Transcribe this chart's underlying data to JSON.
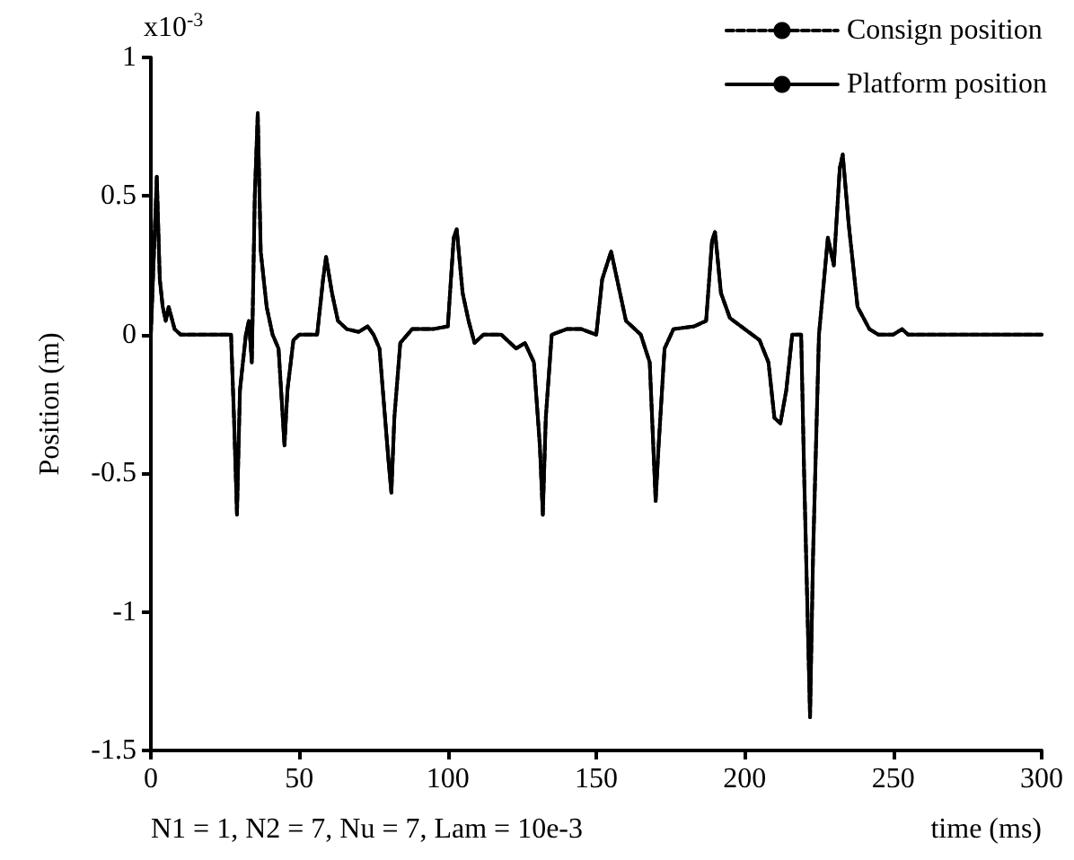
{
  "chart_data": {
    "type": "line",
    "xlabel": "time (ms)",
    "ylabel": "Position (m)",
    "annotations": [
      "x10$^{-3}$",
      "N1 = 1, N2 = 7, Nu = 7, Lam = 10e-3"
    ],
    "x": [
      0,
      2,
      3,
      4,
      5,
      6,
      8,
      10,
      27,
      28,
      29,
      30,
      32,
      33,
      34,
      35,
      36,
      37,
      39,
      41,
      43,
      45,
      46,
      48,
      50,
      56,
      58,
      59,
      61,
      63,
      66,
      70,
      73,
      75,
      77,
      80,
      81,
      82,
      84,
      88,
      95,
      100,
      102,
      103,
      105,
      107,
      109,
      112,
      118,
      121,
      123,
      126,
      129,
      131,
      132,
      133,
      135,
      140,
      145,
      150,
      152,
      155,
      157,
      160,
      165,
      168,
      170,
      171,
      173,
      176,
      183,
      187,
      189,
      190,
      192,
      195,
      200,
      205,
      208,
      210,
      212,
      214,
      216,
      219,
      220,
      222,
      223,
      225,
      228,
      230,
      232,
      233,
      235,
      238,
      242,
      245,
      250,
      253,
      255,
      300
    ],
    "series": [
      {
        "name": "Consign position",
        "color": "#000000",
        "line_style": "dashed",
        "values": [
          0,
          0.57,
          0.2,
          0.1,
          0.05,
          0.1,
          0.02,
          0,
          0,
          -0.3,
          -0.65,
          -0.2,
          0,
          0.05,
          -0.1,
          0.5,
          0.8,
          0.3,
          0.1,
          0,
          -0.05,
          -0.4,
          -0.2,
          -0.02,
          0,
          0,
          0.2,
          0.28,
          0.15,
          0.05,
          0.02,
          0.01,
          0.03,
          0,
          -0.05,
          -0.45,
          -0.57,
          -0.3,
          -0.03,
          0.02,
          0.02,
          0.03,
          0.35,
          0.38,
          0.15,
          0.05,
          -0.03,
          0,
          0,
          -0.03,
          -0.05,
          -0.03,
          -0.1,
          -0.4,
          -0.65,
          -0.3,
          0,
          0.02,
          0.02,
          0,
          0.2,
          0.3,
          0.2,
          0.05,
          0,
          -0.1,
          -0.6,
          -0.4,
          -0.05,
          0.02,
          0.03,
          0.05,
          0.34,
          0.37,
          0.15,
          0.06,
          0.02,
          -0.02,
          -0.1,
          -0.3,
          -0.32,
          -0.2,
          0,
          0,
          -0.5,
          -1.38,
          -0.8,
          0,
          0.35,
          0.25,
          0.6,
          0.65,
          0.4,
          0.1,
          0.02,
          0,
          0,
          0.02,
          0,
          0
        ]
      },
      {
        "name": "Platform position",
        "color": "#000000",
        "line_style": "solid",
        "values": [
          0,
          0.57,
          0.2,
          0.1,
          0.05,
          0.1,
          0.02,
          0,
          0,
          -0.3,
          -0.65,
          -0.2,
          0,
          0.05,
          -0.1,
          0.5,
          0.8,
          0.3,
          0.1,
          0,
          -0.05,
          -0.4,
          -0.2,
          -0.02,
          0,
          0,
          0.2,
          0.28,
          0.15,
          0.05,
          0.02,
          0.01,
          0.03,
          0,
          -0.05,
          -0.45,
          -0.57,
          -0.3,
          -0.03,
          0.02,
          0.02,
          0.03,
          0.35,
          0.38,
          0.15,
          0.05,
          -0.03,
          0,
          0,
          -0.03,
          -0.05,
          -0.03,
          -0.1,
          -0.4,
          -0.65,
          -0.3,
          0,
          0.02,
          0.02,
          0,
          0.2,
          0.3,
          0.2,
          0.05,
          0,
          -0.1,
          -0.6,
          -0.4,
          -0.05,
          0.02,
          0.03,
          0.05,
          0.34,
          0.37,
          0.15,
          0.06,
          0.02,
          -0.02,
          -0.1,
          -0.3,
          -0.32,
          -0.2,
          0,
          0,
          -0.5,
          -1.38,
          -0.8,
          0,
          0.35,
          0.25,
          0.6,
          0.65,
          0.4,
          0.1,
          0.02,
          0,
          0,
          0.02,
          0,
          0
        ]
      }
    ],
    "xlim": [
      0,
      300
    ],
    "xticks": [
      0,
      50,
      100,
      150,
      200,
      250,
      300
    ],
    "ylim": [
      -1.5,
      1
    ],
    "yticks": [
      -1.5,
      -1,
      -0.5,
      0,
      0.5,
      1
    ],
    "grid": false,
    "legend": "top right",
    "marker": "none"
  }
}
